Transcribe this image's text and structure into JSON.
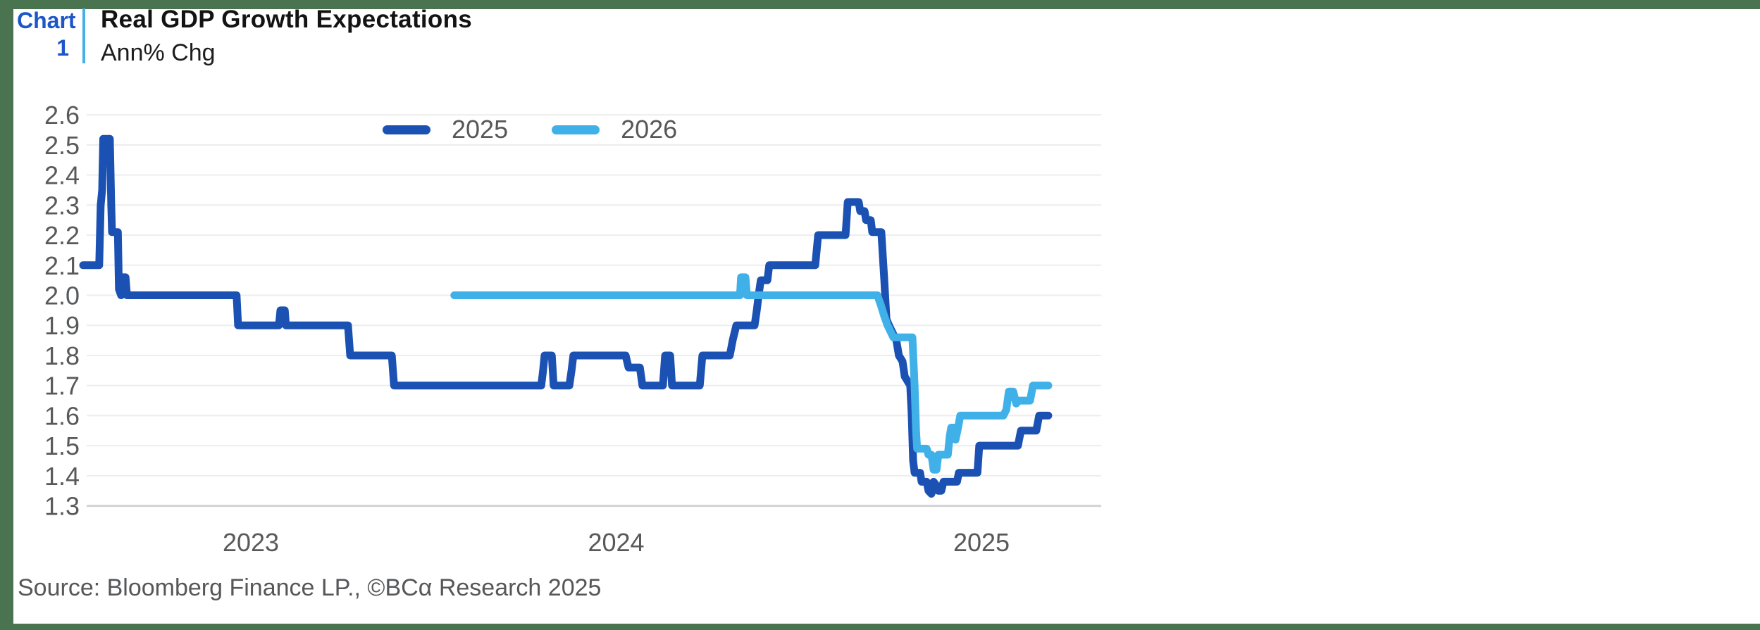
{
  "page": {
    "border_color": "#4a7350",
    "background": "#ffffff"
  },
  "header": {
    "chart_label": "Chart",
    "chart_number": "1",
    "title": "Real GDP Growth Expectations",
    "subtitle": "Ann% Chg",
    "label_color": "#1d56c8",
    "separator_color": "#45b1e8"
  },
  "source": "Source: Bloomberg Finance LP., ©BCα Research 2025",
  "colors": {
    "grid": "#ededed",
    "axis_line": "#d2d2d2",
    "tick_text": "#58595b"
  },
  "chart_data": {
    "type": "line",
    "title": "Real GDP Growth Expectations",
    "ylabel": "Ann% Chg",
    "legend_position": "top",
    "grid": true,
    "x_axis": {
      "range": [
        2022.55,
        2025.33
      ],
      "ticks": [
        {
          "label": "2023",
          "value": 2023
        },
        {
          "label": "2024",
          "value": 2024
        },
        {
          "label": "2025",
          "value": 2025
        }
      ]
    },
    "y_axis": {
      "range": [
        1.3,
        2.6
      ],
      "tick_labels": [
        "2.6",
        "2.5",
        "2.4",
        "2.3",
        "2.2",
        "2.1",
        "2.0",
        "1.9",
        "1.8",
        "1.7",
        "1.6",
        "1.5",
        "1.4",
        "1.3"
      ]
    },
    "series": [
      {
        "name": "2025",
        "color": "#1a51b3",
        "points": [
          [
            2022.541,
            2.1
          ],
          [
            2022.585,
            2.1
          ],
          [
            2022.589,
            2.3
          ],
          [
            2022.593,
            2.35
          ],
          [
            2022.596,
            2.52
          ],
          [
            2022.614,
            2.52
          ],
          [
            2022.618,
            2.3
          ],
          [
            2022.62,
            2.21
          ],
          [
            2022.636,
            2.21
          ],
          [
            2022.639,
            2.02
          ],
          [
            2022.645,
            2.0
          ],
          [
            2022.649,
            2.06
          ],
          [
            2022.657,
            2.06
          ],
          [
            2022.661,
            2.0
          ],
          [
            2022.961,
            2.0
          ],
          [
            2022.965,
            1.9
          ],
          [
            2023.077,
            1.9
          ],
          [
            2023.081,
            1.95
          ],
          [
            2023.093,
            1.95
          ],
          [
            2023.096,
            1.9
          ],
          [
            2023.266,
            1.9
          ],
          [
            2023.272,
            1.8
          ],
          [
            2023.386,
            1.8
          ],
          [
            2023.392,
            1.7
          ],
          [
            2023.795,
            1.7
          ],
          [
            2023.8,
            1.75
          ],
          [
            2023.804,
            1.8
          ],
          [
            2023.824,
            1.8
          ],
          [
            2023.829,
            1.7
          ],
          [
            2023.872,
            1.7
          ],
          [
            2023.878,
            1.75
          ],
          [
            2023.883,
            1.8
          ],
          [
            2024.026,
            1.8
          ],
          [
            2024.034,
            1.76
          ],
          [
            2024.065,
            1.76
          ],
          [
            2024.072,
            1.7
          ],
          [
            2024.128,
            1.7
          ],
          [
            2024.134,
            1.8
          ],
          [
            2024.148,
            1.8
          ],
          [
            2024.153,
            1.7
          ],
          [
            2024.229,
            1.7
          ],
          [
            2024.236,
            1.8
          ],
          [
            2024.311,
            1.8
          ],
          [
            2024.319,
            1.85
          ],
          [
            2024.329,
            1.9
          ],
          [
            2024.379,
            1.9
          ],
          [
            2024.385,
            1.95
          ],
          [
            2024.39,
            2.0
          ],
          [
            2024.396,
            2.05
          ],
          [
            2024.414,
            2.05
          ],
          [
            2024.419,
            2.1
          ],
          [
            2024.545,
            2.1
          ],
          [
            2024.553,
            2.2
          ],
          [
            2024.628,
            2.2
          ],
          [
            2024.634,
            2.31
          ],
          [
            2024.664,
            2.31
          ],
          [
            2024.668,
            2.28
          ],
          [
            2024.68,
            2.28
          ],
          [
            2024.684,
            2.25
          ],
          [
            2024.697,
            2.25
          ],
          [
            2024.701,
            2.21
          ],
          [
            2024.726,
            2.21
          ],
          [
            2024.734,
            2.05
          ],
          [
            2024.74,
            1.92
          ],
          [
            2024.747,
            1.9
          ],
          [
            2024.759,
            1.87
          ],
          [
            2024.767,
            1.85
          ],
          [
            2024.774,
            1.8
          ],
          [
            2024.784,
            1.78
          ],
          [
            2024.79,
            1.73
          ],
          [
            2024.805,
            1.7
          ],
          [
            2024.809,
            1.6
          ],
          [
            2024.813,
            1.45
          ],
          [
            2024.817,
            1.41
          ],
          [
            2024.832,
            1.41
          ],
          [
            2024.836,
            1.38
          ],
          [
            2024.85,
            1.38
          ],
          [
            2024.855,
            1.35
          ],
          [
            2024.863,
            1.34
          ],
          [
            2024.869,
            1.38
          ],
          [
            2024.875,
            1.37
          ],
          [
            2024.882,
            1.35
          ],
          [
            2024.89,
            1.35
          ],
          [
            2024.896,
            1.38
          ],
          [
            2024.933,
            1.38
          ],
          [
            2024.938,
            1.41
          ],
          [
            2024.989,
            1.41
          ],
          [
            2024.994,
            1.5
          ],
          [
            2025.1,
            1.5
          ],
          [
            2025.108,
            1.55
          ],
          [
            2025.15,
            1.55
          ],
          [
            2025.158,
            1.6
          ],
          [
            2025.183,
            1.6
          ]
        ]
      },
      {
        "name": "2026",
        "color": "#3fb1e8",
        "points": [
          [
            2023.557,
            2.0
          ],
          [
            2024.339,
            2.0
          ],
          [
            2024.342,
            2.06
          ],
          [
            2024.354,
            2.06
          ],
          [
            2024.358,
            2.0
          ],
          [
            2024.715,
            2.0
          ],
          [
            2024.724,
            1.97
          ],
          [
            2024.734,
            1.93
          ],
          [
            2024.743,
            1.9
          ],
          [
            2024.751,
            1.88
          ],
          [
            2024.759,
            1.86
          ],
          [
            2024.811,
            1.86
          ],
          [
            2024.817,
            1.7
          ],
          [
            2024.821,
            1.55
          ],
          [
            2024.824,
            1.49
          ],
          [
            2024.85,
            1.49
          ],
          [
            2024.855,
            1.47
          ],
          [
            2024.863,
            1.47
          ],
          [
            2024.869,
            1.42
          ],
          [
            2024.877,
            1.42
          ],
          [
            2024.882,
            1.47
          ],
          [
            2024.908,
            1.47
          ],
          [
            2024.913,
            1.53
          ],
          [
            2024.917,
            1.56
          ],
          [
            2024.925,
            1.56
          ],
          [
            2024.929,
            1.52
          ],
          [
            2024.936,
            1.56
          ],
          [
            2024.942,
            1.6
          ],
          [
            2025.06,
            1.6
          ],
          [
            2025.068,
            1.62
          ],
          [
            2025.075,
            1.68
          ],
          [
            2025.087,
            1.68
          ],
          [
            2025.095,
            1.64
          ],
          [
            2025.102,
            1.65
          ],
          [
            2025.133,
            1.65
          ],
          [
            2025.141,
            1.7
          ],
          [
            2025.183,
            1.7
          ]
        ]
      }
    ]
  }
}
